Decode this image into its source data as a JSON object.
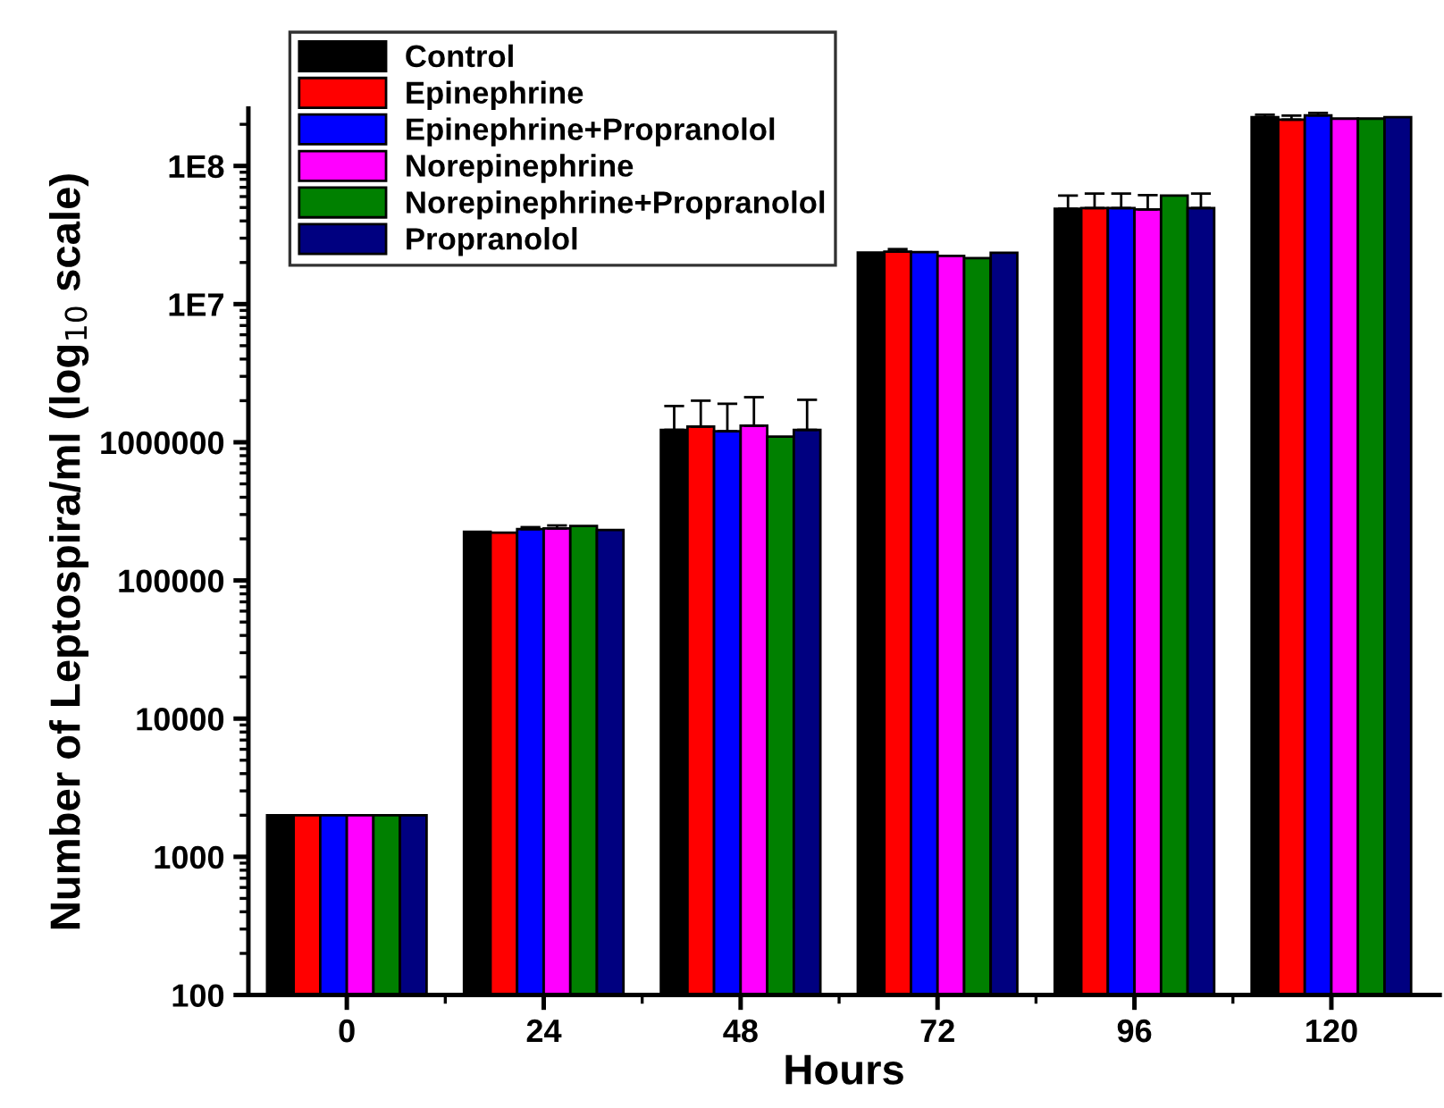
{
  "chart_data": {
    "type": "bar",
    "xlabel": "Hours",
    "ylabel": "Number of Leptospira/ml (log$_{10}$ scale)",
    "categories": [
      "0",
      "24",
      "48",
      "72",
      "96",
      "120"
    ],
    "series": [
      {
        "name": "Control",
        "color": "#000000",
        "values": [
          2000,
          225000,
          1230000,
          23600000,
          49000000,
          225000000
        ],
        "errors": [
          null,
          null,
          600000,
          null,
          12000000,
          10000000
        ]
      },
      {
        "name": "Epinephrine",
        "color": "#ff0000",
        "values": [
          2000,
          222000,
          1300000,
          24000000,
          49500000,
          216000000
        ],
        "errors": [
          null,
          null,
          700000,
          1000000,
          13500000,
          15000000
        ]
      },
      {
        "name": "Epinephrine+Propranolol",
        "color": "#0000ff",
        "values": [
          2000,
          235000,
          1200000,
          23800000,
          49500000,
          232000000
        ],
        "errors": [
          null,
          8000,
          700000,
          null,
          13500000,
          10000000
        ]
      },
      {
        "name": "Norepinephrine",
        "color": "#ff00ff",
        "values": [
          2000,
          238000,
          1320000,
          22300000,
          48500000,
          220000000
        ],
        "errors": [
          null,
          12000,
          800000,
          null,
          13000000,
          null
        ]
      },
      {
        "name": "Norepinephrine+Propranolol",
        "color": "#008000",
        "values": [
          2000,
          248000,
          1100000,
          21500000,
          61000000,
          220000000
        ],
        "errors": [
          null,
          null,
          null,
          null,
          null,
          null
        ]
      },
      {
        "name": "Propranolol",
        "color": "#000080",
        "values": [
          2000,
          232000,
          1230000,
          23500000,
          49500000,
          225000000
        ],
        "errors": [
          null,
          null,
          800000,
          null,
          13500000,
          null
        ]
      }
    ],
    "log": "y",
    "ylim": [
      100,
      260000000
    ],
    "yticks": [
      100,
      1000,
      10000,
      100000,
      1000000,
      {
        "value": 10000000,
        "label": "1E7"
      },
      {
        "value": 100000000,
        "label": "1E8"
      }
    ],
    "legend": "top left",
    "grid": false
  }
}
